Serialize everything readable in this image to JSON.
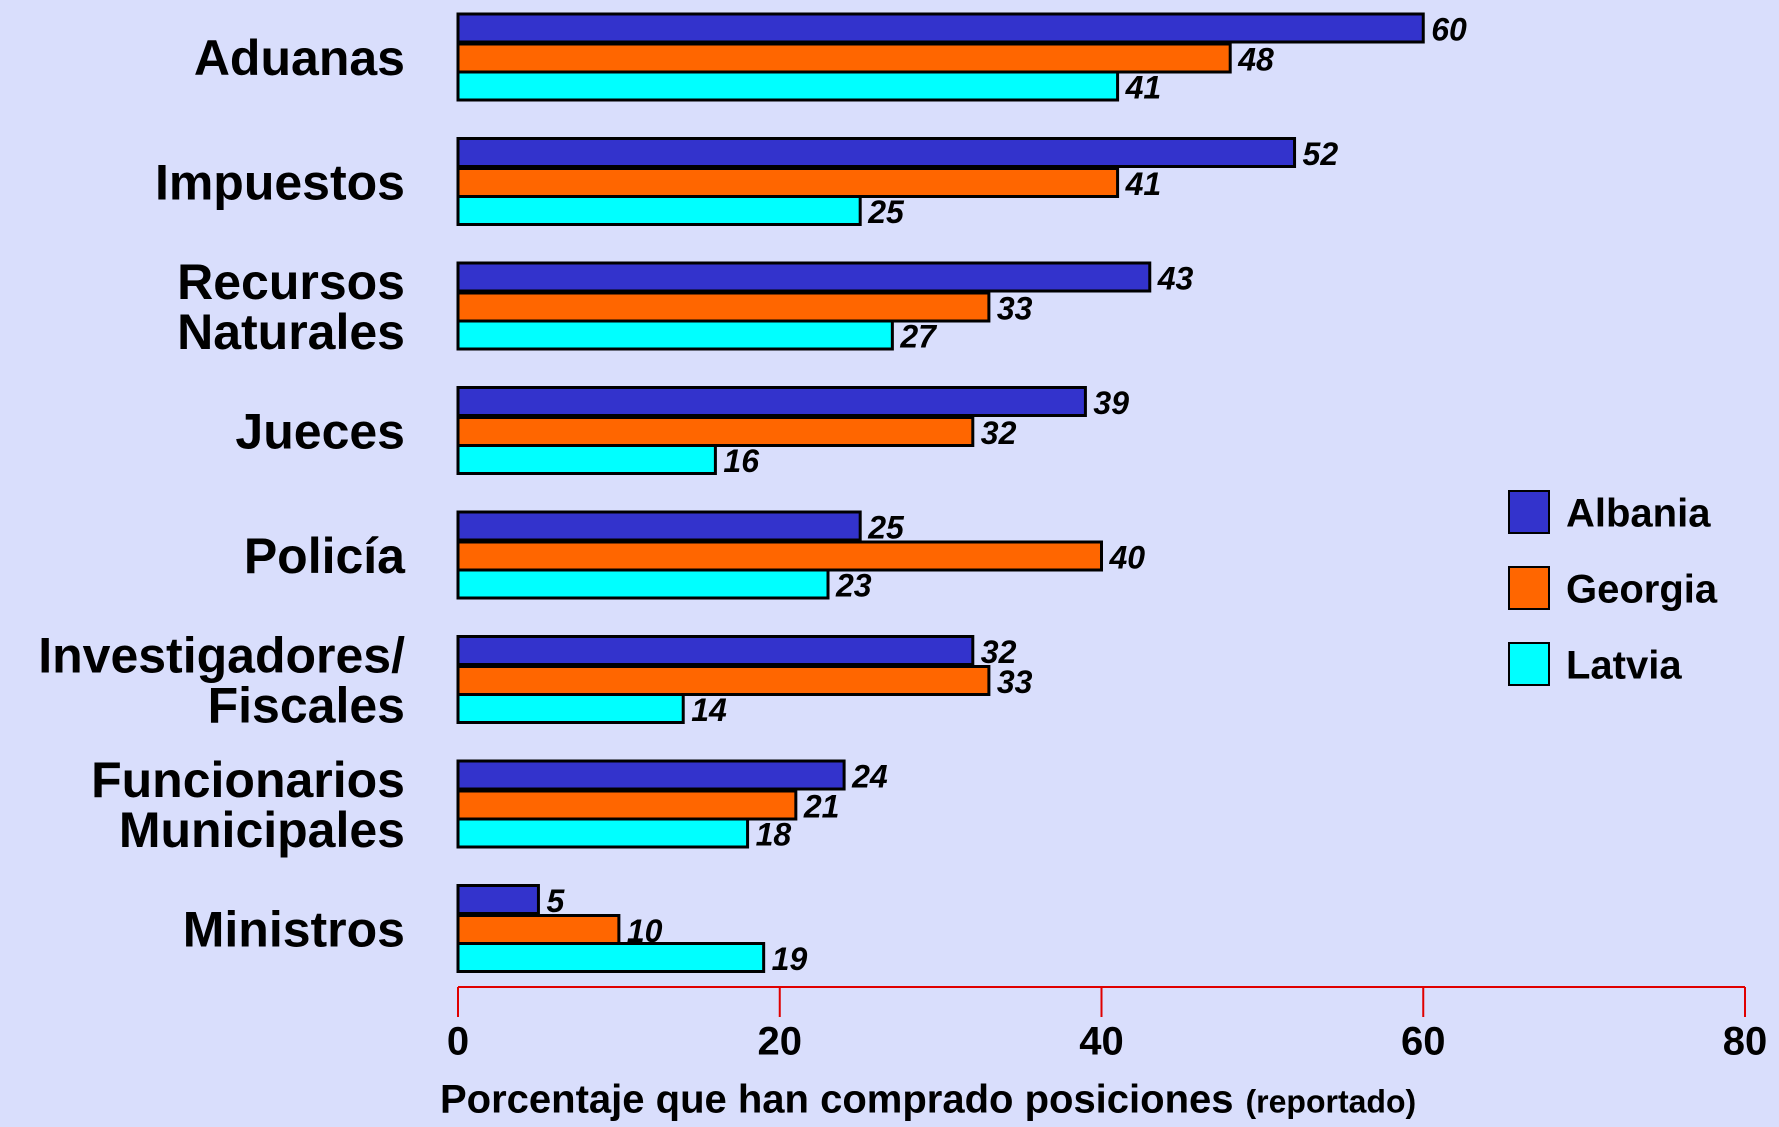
{
  "chart_data": {
    "type": "hbar",
    "categories": [
      "Aduanas",
      "Impuestos",
      "Recursos\nNaturales",
      "Jueces",
      "Policía",
      "Investigadores/\nFiscales",
      "Funcionarios\nMunicipales",
      "Ministros"
    ],
    "series": [
      {
        "name": "Albania",
        "color": "#3333cc",
        "values": [
          60,
          52,
          43,
          39,
          25,
          32,
          24,
          5
        ]
      },
      {
        "name": "Georgia",
        "color": "#ff6600",
        "values": [
          48,
          41,
          33,
          32,
          40,
          33,
          21,
          10
        ]
      },
      {
        "name": "Latvia",
        "color": "#00ffff",
        "values": [
          41,
          25,
          27,
          16,
          23,
          14,
          18,
          19
        ]
      }
    ],
    "xlim": [
      0,
      80
    ],
    "xticks": [
      0,
      20,
      40,
      60,
      80
    ],
    "x_label": "Porcentaje que han comprado posiciones",
    "x_label_note": "(reportado)",
    "legend": "right"
  }
}
